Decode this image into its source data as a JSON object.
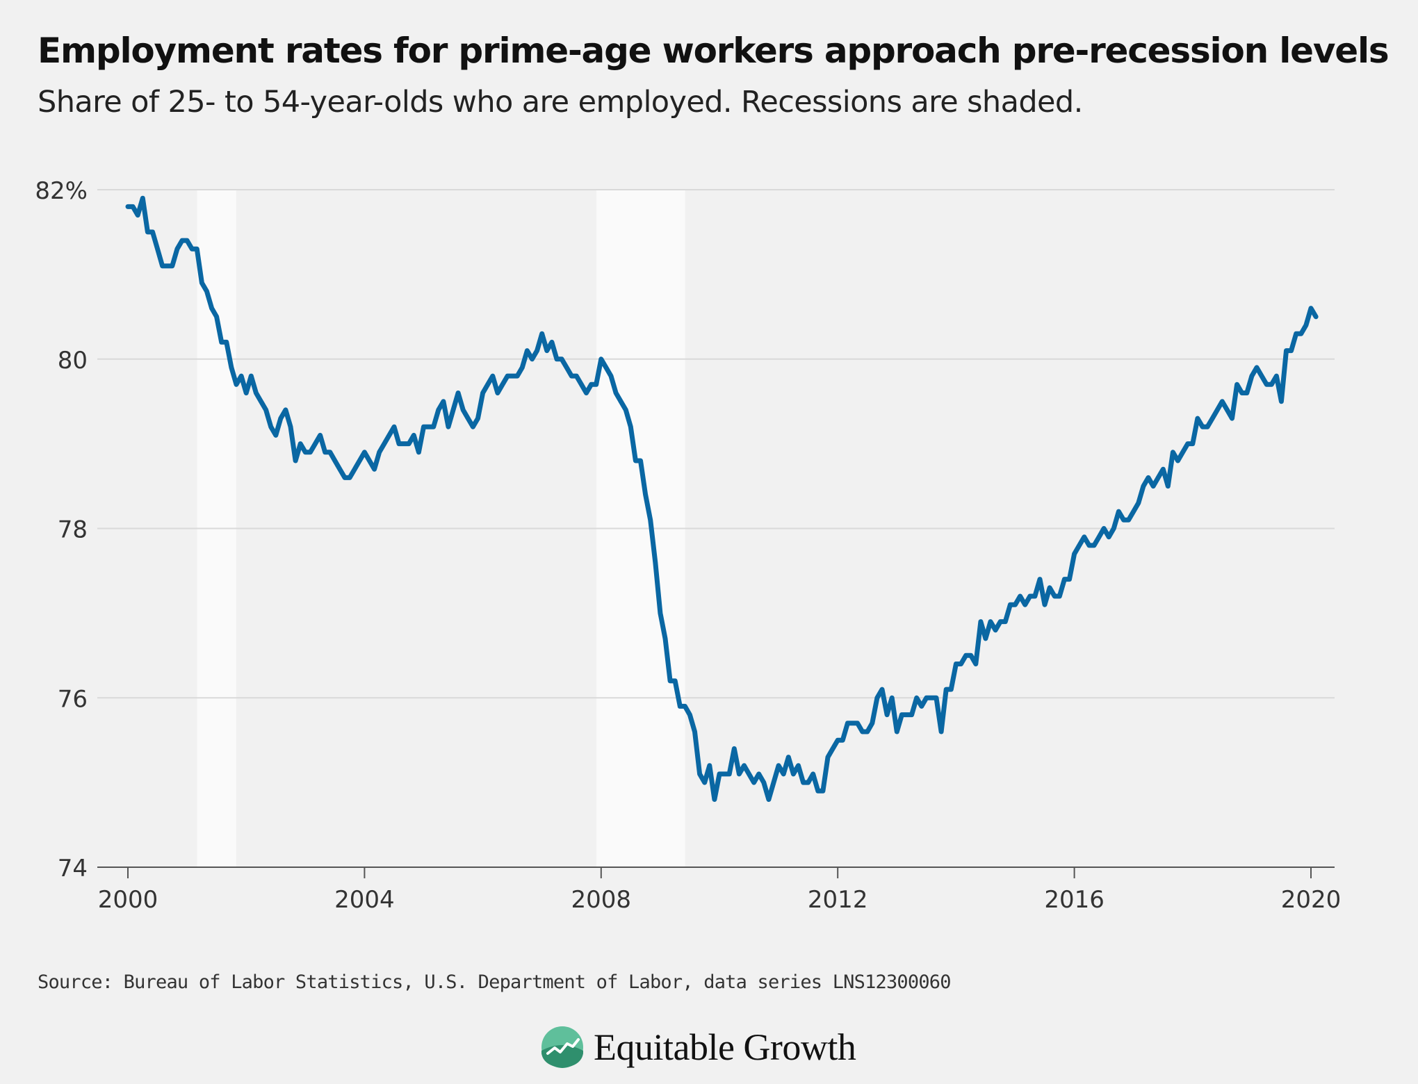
{
  "header": {
    "title": "Employment rates for prime-age workers approach pre-recession levels",
    "subtitle": "Share of 25- to 54-year-olds who are employed. Recessions are shaded."
  },
  "footer": {
    "source": "Source: Bureau of Labor Statistics, U.S. Department of Labor, data series LNS12300060",
    "brand_name": "Equitable Growth"
  },
  "colors": {
    "line": "#0a67a3",
    "recession": "#fafafa",
    "grid": "#d9d9d9",
    "background": "#f1f1f1",
    "logo": "#5fbf9b"
  },
  "chart_data": {
    "type": "line",
    "title": "Employment rates for prime-age workers approach pre-recession levels",
    "subtitle": "Share of 25- to 54-year-olds who are employed. Recessions are shaded.",
    "xlim": [
      2000,
      2020.4
    ],
    "ylim": [
      74,
      82
    ],
    "x_ticks": [
      2000,
      2004,
      2008,
      2012,
      2016,
      2020
    ],
    "x_tick_labels": [
      "2000",
      "2004",
      "2008",
      "2012",
      "2016",
      "2020"
    ],
    "y_ticks": [
      74,
      76,
      78,
      80,
      82
    ],
    "y_tick_labels": [
      "74",
      "76",
      "78",
      "80",
      "82%"
    ],
    "grid": true,
    "recessions": [
      {
        "start": 2001.17,
        "end": 2001.83
      },
      {
        "start": 2007.92,
        "end": 2009.42
      }
    ],
    "series": [
      {
        "start_year": 2000,
        "step_months": 1,
        "values": [
          81.8,
          81.8,
          81.7,
          81.9,
          81.5,
          81.5,
          81.3,
          81.1,
          81.1,
          81.1,
          81.3,
          81.4,
          81.4,
          81.3,
          81.3,
          80.9,
          80.8,
          80.6,
          80.5,
          80.2,
          80.2,
          79.9,
          79.7,
          79.8,
          79.6,
          79.8,
          79.6,
          79.5,
          79.4,
          79.2,
          79.1,
          79.3,
          79.4,
          79.2,
          78.8,
          79.0,
          78.9,
          78.9,
          79.0,
          79.1,
          78.9,
          78.9,
          78.8,
          78.7,
          78.6,
          78.6,
          78.7,
          78.8,
          78.9,
          78.8,
          78.7,
          78.9,
          79.0,
          79.1,
          79.2,
          79.0,
          79.0,
          79.0,
          79.1,
          78.9,
          79.2,
          79.2,
          79.2,
          79.4,
          79.5,
          79.2,
          79.4,
          79.6,
          79.4,
          79.3,
          79.2,
          79.3,
          79.6,
          79.7,
          79.8,
          79.6,
          79.7,
          79.8,
          79.8,
          79.8,
          79.9,
          80.1,
          80.0,
          80.1,
          80.3,
          80.1,
          80.2,
          80.0,
          80.0,
          79.9,
          79.8,
          79.8,
          79.7,
          79.6,
          79.7,
          79.7,
          80.0,
          79.9,
          79.8,
          79.6,
          79.5,
          79.4,
          79.2,
          78.8,
          78.8,
          78.4,
          78.1,
          77.6,
          77.0,
          76.7,
          76.2,
          76.2,
          75.9,
          75.9,
          75.8,
          75.6,
          75.1,
          75.0,
          75.2,
          74.8,
          75.1,
          75.1,
          75.1,
          75.4,
          75.1,
          75.2,
          75.1,
          75.0,
          75.1,
          75.0,
          74.8,
          75.0,
          75.2,
          75.1,
          75.3,
          75.1,
          75.2,
          75.0,
          75.0,
          75.1,
          74.9,
          74.9,
          75.3,
          75.4,
          75.5,
          75.5,
          75.7,
          75.7,
          75.7,
          75.6,
          75.6,
          75.7,
          76.0,
          76.1,
          75.8,
          76.0,
          75.6,
          75.8,
          75.8,
          75.8,
          76.0,
          75.9,
          76.0,
          76.0,
          76.0,
          75.6,
          76.1,
          76.1,
          76.4,
          76.4,
          76.5,
          76.5,
          76.4,
          76.9,
          76.7,
          76.9,
          76.8,
          76.9,
          76.9,
          77.1,
          77.1,
          77.2,
          77.1,
          77.2,
          77.2,
          77.4,
          77.1,
          77.3,
          77.2,
          77.2,
          77.4,
          77.4,
          77.7,
          77.8,
          77.9,
          77.8,
          77.8,
          77.9,
          78.0,
          77.9,
          78.0,
          78.2,
          78.1,
          78.1,
          78.2,
          78.3,
          78.5,
          78.6,
          78.5,
          78.6,
          78.7,
          78.5,
          78.9,
          78.8,
          78.9,
          79.0,
          79.0,
          79.3,
          79.2,
          79.2,
          79.3,
          79.4,
          79.5,
          79.4,
          79.3,
          79.7,
          79.6,
          79.6,
          79.8,
          79.9,
          79.8,
          79.7,
          79.7,
          79.8,
          79.5,
          80.1,
          80.1,
          80.3,
          80.3,
          80.4,
          80.6,
          80.5
        ]
      }
    ]
  }
}
